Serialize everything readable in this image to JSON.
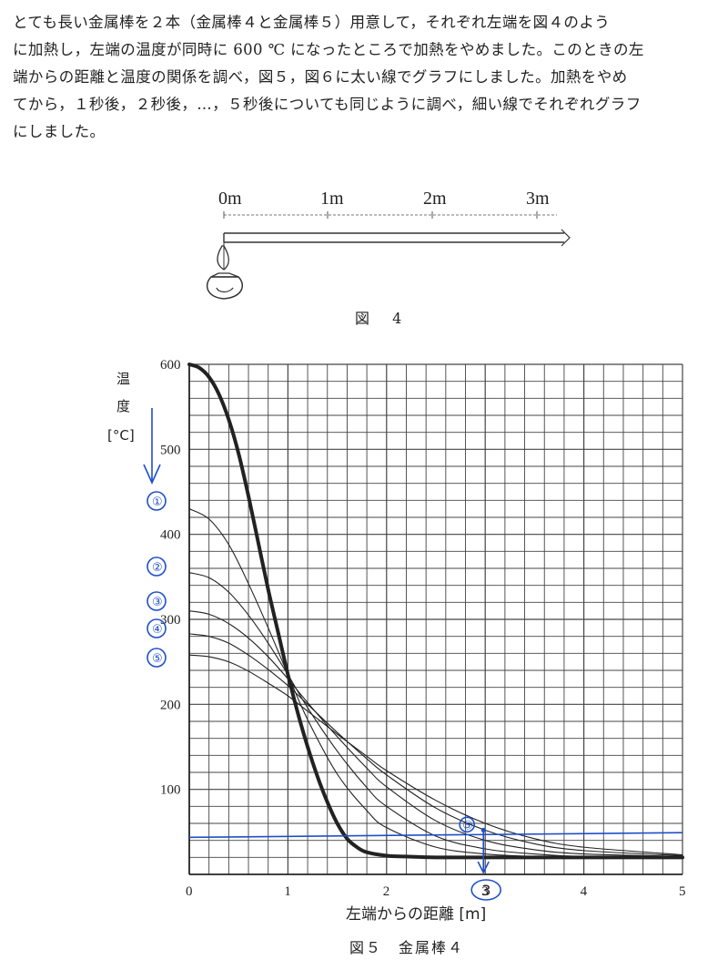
{
  "problem": {
    "lines": [
      "とても長い金属棒を２本（金属棒４と金属棒５）用意して，それぞれ左端を図４のよう",
      "に加熱し，左端の温度が同時に 600 ℃ になったところで加熱をやめました。このときの左",
      "端からの距離と温度の関係を調べ，図５，図６に太い線でグラフにしました。加熱をやめ",
      "てから，１秒後，２秒後，…，５秒後についても同じように調べ，細い線でそれぞれグラフ",
      "にしました。"
    ]
  },
  "figure4": {
    "ruler_labels": [
      "0m",
      "1m",
      "2m",
      "3m"
    ],
    "caption": "図 4"
  },
  "chart_data": {
    "type": "line",
    "title": "",
    "ylabel_lines": [
      "温",
      "度",
      "[°C]"
    ],
    "xlabel": "左端からの距離 [m]",
    "caption": "図５　金属棒４",
    "xlim": [
      0,
      5
    ],
    "ylim": [
      0,
      600
    ],
    "x_ticks": [
      0,
      1,
      2,
      3,
      4,
      5
    ],
    "y_ticks": [
      100,
      200,
      300,
      400,
      500,
      600
    ],
    "grid": true,
    "series": [
      {
        "style": "thick",
        "x": [
          0,
          0.1,
          0.2,
          0.3,
          0.4,
          0.5,
          0.6,
          0.7,
          0.8,
          0.9,
          1.0,
          1.1,
          1.2,
          1.3,
          1.4,
          1.5,
          1.6,
          1.7,
          1.8,
          2.0,
          2.2,
          2.5,
          3.0,
          4.0,
          5.0
        ],
        "y": [
          600,
          596,
          585,
          565,
          535,
          495,
          445,
          390,
          335,
          285,
          235,
          190,
          150,
          115,
          85,
          60,
          42,
          32,
          26,
          22,
          21,
          20,
          20,
          20,
          20
        ]
      },
      {
        "style": "thin",
        "x": [
          0,
          0.2,
          0.4,
          0.6,
          0.8,
          1.0,
          1.2,
          1.5,
          1.8,
          2.0,
          2.5,
          3.0,
          3.5,
          4.0,
          5.0
        ],
        "y": [
          430,
          418,
          388,
          342,
          290,
          235,
          182,
          118,
          75,
          55,
          32,
          24,
          21,
          20,
          20
        ]
      },
      {
        "style": "thin",
        "x": [
          0,
          0.2,
          0.4,
          0.6,
          0.8,
          1.0,
          1.2,
          1.5,
          1.8,
          2.0,
          2.5,
          3.0,
          3.5,
          4.0,
          5.0
        ],
        "y": [
          355,
          349,
          332,
          305,
          272,
          235,
          196,
          145,
          102,
          80,
          45,
          30,
          24,
          21,
          20
        ]
      },
      {
        "style": "thin",
        "x": [
          0,
          0.2,
          0.4,
          0.6,
          0.8,
          1.0,
          1.2,
          1.5,
          1.8,
          2.0,
          2.5,
          3.0,
          3.5,
          4.0,
          5.0
        ],
        "y": [
          310,
          306,
          295,
          278,
          256,
          230,
          202,
          162,
          125,
          103,
          63,
          40,
          29,
          24,
          21
        ]
      },
      {
        "style": "thin",
        "x": [
          0,
          0.2,
          0.4,
          0.6,
          0.8,
          1.0,
          1.2,
          1.5,
          1.8,
          2.0,
          2.5,
          3.0,
          3.5,
          4.0,
          5.0
        ],
        "y": [
          283,
          280,
          272,
          258,
          241,
          222,
          200,
          167,
          136,
          117,
          78,
          52,
          36,
          28,
          22
        ]
      },
      {
        "style": "thin",
        "x": [
          0,
          0.2,
          0.4,
          0.6,
          0.8,
          1.0,
          1.2,
          1.5,
          1.8,
          2.0,
          2.5,
          3.0,
          3.5,
          4.0,
          5.0
        ],
        "y": [
          258,
          256,
          250,
          239,
          225,
          210,
          192,
          165,
          139,
          122,
          87,
          60,
          42,
          32,
          23
        ]
      }
    ],
    "annotations": {
      "circled_numbers": [
        "①",
        "②",
        "③",
        "④",
        "⑤"
      ],
      "x_marker_label": "3",
      "marker_circle_label": "⑤",
      "horizontal_line_y": 50
    }
  }
}
